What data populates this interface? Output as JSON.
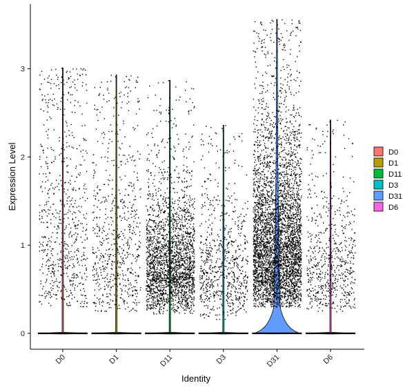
{
  "chart_data": {
    "type": "violin",
    "xlabel": "Identity",
    "ylabel": "Expression Level",
    "categories": [
      "D0",
      "D1",
      "D11",
      "D3",
      "D31",
      "D6"
    ],
    "ylim": [
      -0.2,
      3.6
    ],
    "yticks": [
      0,
      1,
      2,
      3
    ],
    "grid": false,
    "legend_position": "right",
    "colors": [
      "#F8766D",
      "#B79F00",
      "#00BA38",
      "#00BFC4",
      "#619CFF",
      "#F564E3"
    ],
    "series": [
      {
        "name": "D0",
        "max": 3.01,
        "zero_fraction": 0.97,
        "nonzero_count": 700,
        "median_nonzero": 1.2,
        "spread": 0.65,
        "floor": 0.3
      },
      {
        "name": "D1",
        "max": 2.93,
        "zero_fraction": 0.97,
        "nonzero_count": 700,
        "median_nonzero": 1.0,
        "spread": 0.65,
        "floor": 0.25
      },
      {
        "name": "D11",
        "max": 2.87,
        "zero_fraction": 0.92,
        "nonzero_count": 2400,
        "median_nonzero": 0.8,
        "spread": 0.5,
        "floor": 0.22
      },
      {
        "name": "D3",
        "max": 2.36,
        "zero_fraction": 0.97,
        "nonzero_count": 750,
        "median_nonzero": 0.75,
        "spread": 0.55,
        "floor": 0.15
      },
      {
        "name": "D31",
        "max": 3.56,
        "zero_fraction": 0.85,
        "nonzero_count": 4200,
        "median_nonzero": 1.05,
        "spread": 0.55,
        "floor": 0.3
      },
      {
        "name": "D6",
        "max": 2.42,
        "zero_fraction": 0.97,
        "nonzero_count": 650,
        "median_nonzero": 0.8,
        "spread": 0.55,
        "floor": 0.25
      }
    ]
  }
}
